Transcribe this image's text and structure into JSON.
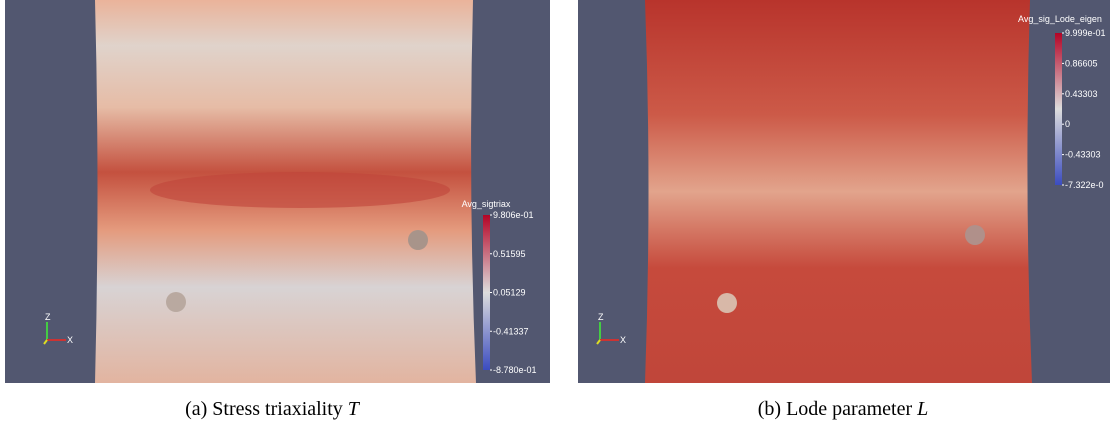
{
  "panels": [
    {
      "colorbar": {
        "title": "Avg_sigtriax",
        "ticks": [
          "9.806e-01",
          "0.51595",
          "0.05129",
          "-0.41337",
          "-8.780e-01"
        ]
      },
      "axes": {
        "z": "Z",
        "x": "X"
      },
      "caption": {
        "text": "(a) Stress triaxiality",
        "symbol": "T"
      }
    },
    {
      "colorbar": {
        "title": "Avg_sig_Lode_eigen",
        "ticks": [
          "9.999e-01",
          "0.86605",
          "0.43303",
          "0",
          "-0.43303",
          "-7.322e-0"
        ]
      },
      "axes": {
        "z": "Z",
        "x": "X"
      },
      "caption": {
        "text": "(b) Lode parameter",
        "symbol": "L"
      }
    }
  ]
}
